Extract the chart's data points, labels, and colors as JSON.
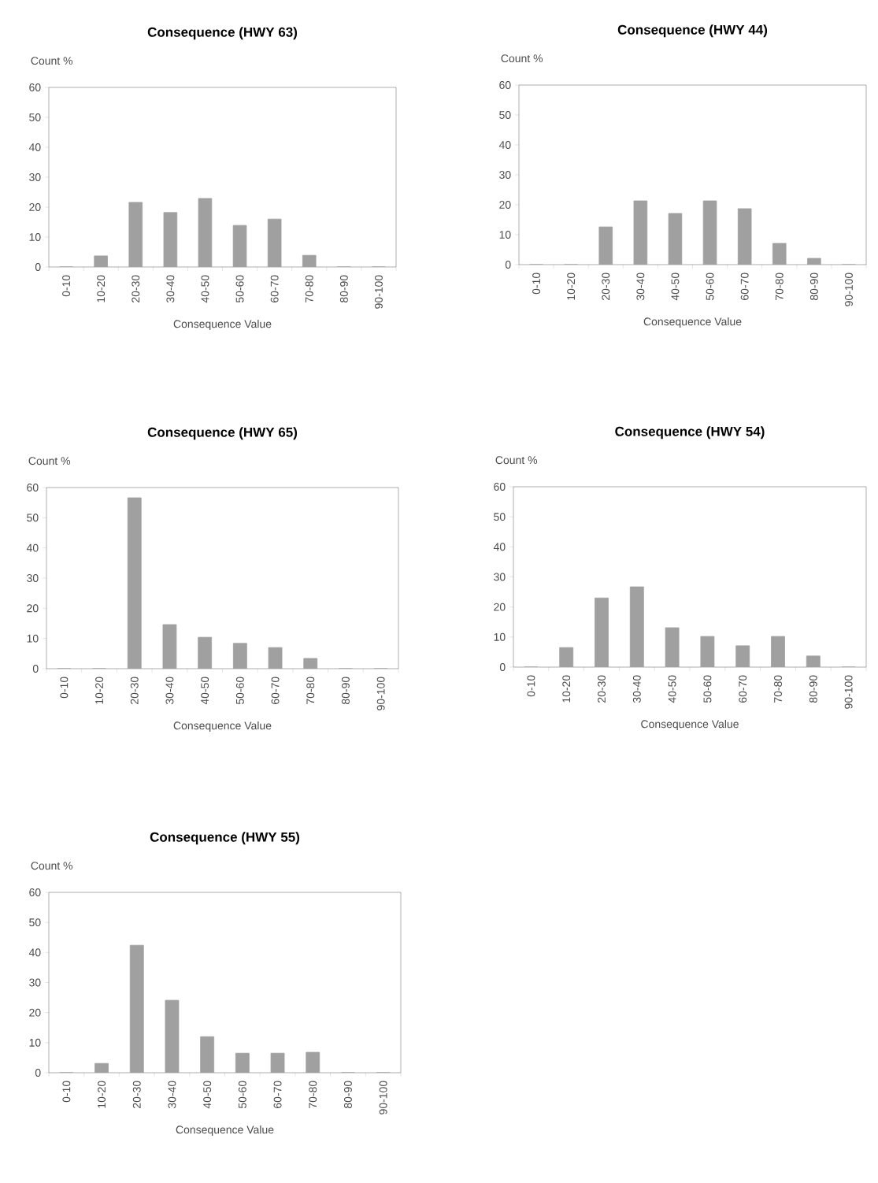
{
  "chart_data": [
    {
      "type": "bar",
      "title": "Consequence (HWY 63)",
      "ylabel": "Count %",
      "xlabel": "Consequence Value",
      "categories": [
        "0-10",
        "10-20",
        "20-30",
        "30-40",
        "40-50",
        "50-60",
        "60-70",
        "70-80",
        "80-90",
        "90-100"
      ],
      "values": [
        0,
        3.7,
        21.6,
        18.2,
        22.9,
        13.9,
        16,
        3.9,
        0,
        0
      ],
      "color": "#a0a0a0",
      "ylim": [
        0,
        60
      ],
      "yticks": [
        0,
        10,
        20,
        30,
        40,
        50,
        60
      ]
    },
    {
      "type": "bar",
      "title": "Consequence (HWY 44)",
      "ylabel": "Count %",
      "xlabel": "Consequence Value",
      "categories": [
        "0-10",
        "10-20",
        "20-30",
        "30-40",
        "40-50",
        "50-60",
        "60-70",
        "70-80",
        "80-90",
        "90-100"
      ],
      "values": [
        0,
        0,
        12.6,
        21.3,
        17.1,
        21.3,
        18.7,
        7.1,
        2.1,
        0
      ],
      "color": "#a0a0a0",
      "ylim": [
        0,
        60
      ],
      "yticks": [
        0,
        10,
        20,
        30,
        40,
        50,
        60
      ]
    },
    {
      "type": "bar",
      "title": "Consequence (HWY 65)",
      "ylabel": "Count %",
      "xlabel": "Consequence Value",
      "categories": [
        "0-10",
        "10-20",
        "20-30",
        "30-40",
        "40-50",
        "50-60",
        "60-70",
        "70-80",
        "80-90",
        "90-100"
      ],
      "values": [
        0,
        0,
        56.6,
        14.6,
        10.4,
        8.4,
        7,
        3.4,
        0,
        0
      ],
      "color": "#a0a0a0",
      "ylim": [
        0,
        60
      ],
      "yticks": [
        0,
        10,
        20,
        30,
        40,
        50,
        60
      ]
    },
    {
      "type": "bar",
      "title": "Consequence (HWY 54)",
      "ylabel": "Count %",
      "xlabel": "Consequence Value",
      "categories": [
        "0-10",
        "10-20",
        "20-30",
        "30-40",
        "40-50",
        "50-60",
        "60-70",
        "70-80",
        "80-90",
        "90-100"
      ],
      "values": [
        0,
        6.5,
        23,
        26.7,
        13.1,
        10.2,
        7.1,
        10.2,
        3.7,
        0
      ],
      "color": "#a0a0a0",
      "ylim": [
        0,
        60
      ],
      "yticks": [
        0,
        10,
        20,
        30,
        40,
        50,
        60
      ]
    },
    {
      "type": "bar",
      "title": "Consequence (HWY 55)",
      "ylabel": "Count %",
      "xlabel": "Consequence Value",
      "categories": [
        "0-10",
        "10-20",
        "20-30",
        "30-40",
        "40-50",
        "50-60",
        "60-70",
        "70-80",
        "80-90",
        "90-100"
      ],
      "values": [
        0,
        3.1,
        42.4,
        24.1,
        12,
        6.5,
        6.5,
        6.8,
        0,
        0
      ],
      "color": "#a0a0a0",
      "ylim": [
        0,
        60
      ],
      "yticks": [
        0,
        10,
        20,
        30,
        40,
        50,
        60
      ]
    }
  ]
}
